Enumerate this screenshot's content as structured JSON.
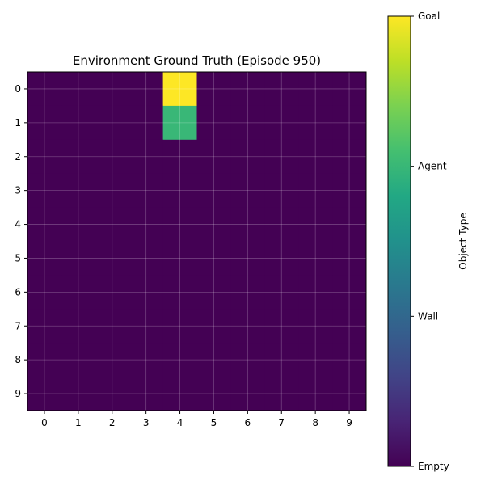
{
  "chart_data": {
    "type": "heatmap",
    "title": "Environment Ground Truth (Episode 950)",
    "xlabel": "",
    "ylabel": "",
    "x_ticks": [
      0,
      1,
      2,
      3,
      4,
      5,
      6,
      7,
      8,
      9
    ],
    "y_ticks": [
      0,
      1,
      2,
      3,
      4,
      5,
      6,
      7,
      8,
      9
    ],
    "grid": true,
    "colormap": "viridis",
    "value_range": [
      0,
      3
    ],
    "matrix": [
      [
        0,
        0,
        0,
        0,
        3,
        0,
        0,
        0,
        0,
        0
      ],
      [
        0,
        0,
        0,
        0,
        2,
        0,
        0,
        0,
        0,
        0
      ],
      [
        0,
        0,
        0,
        0,
        0,
        0,
        0,
        0,
        0,
        0
      ],
      [
        0,
        0,
        0,
        0,
        0,
        0,
        0,
        0,
        0,
        0
      ],
      [
        0,
        0,
        0,
        0,
        0,
        0,
        0,
        0,
        0,
        0
      ],
      [
        0,
        0,
        0,
        0,
        0,
        0,
        0,
        0,
        0,
        0
      ],
      [
        0,
        0,
        0,
        0,
        0,
        0,
        0,
        0,
        0,
        0
      ],
      [
        0,
        0,
        0,
        0,
        0,
        0,
        0,
        0,
        0,
        0
      ],
      [
        0,
        0,
        0,
        0,
        0,
        0,
        0,
        0,
        0,
        0
      ],
      [
        0,
        0,
        0,
        0,
        0,
        0,
        0,
        0,
        0,
        0
      ]
    ],
    "colorbar": {
      "label": "Object Type",
      "ticks": [
        {
          "value": 0,
          "label": "Empty"
        },
        {
          "value": 1,
          "label": "Wall"
        },
        {
          "value": 2,
          "label": "Agent"
        },
        {
          "value": 3,
          "label": "Goal"
        }
      ]
    }
  }
}
